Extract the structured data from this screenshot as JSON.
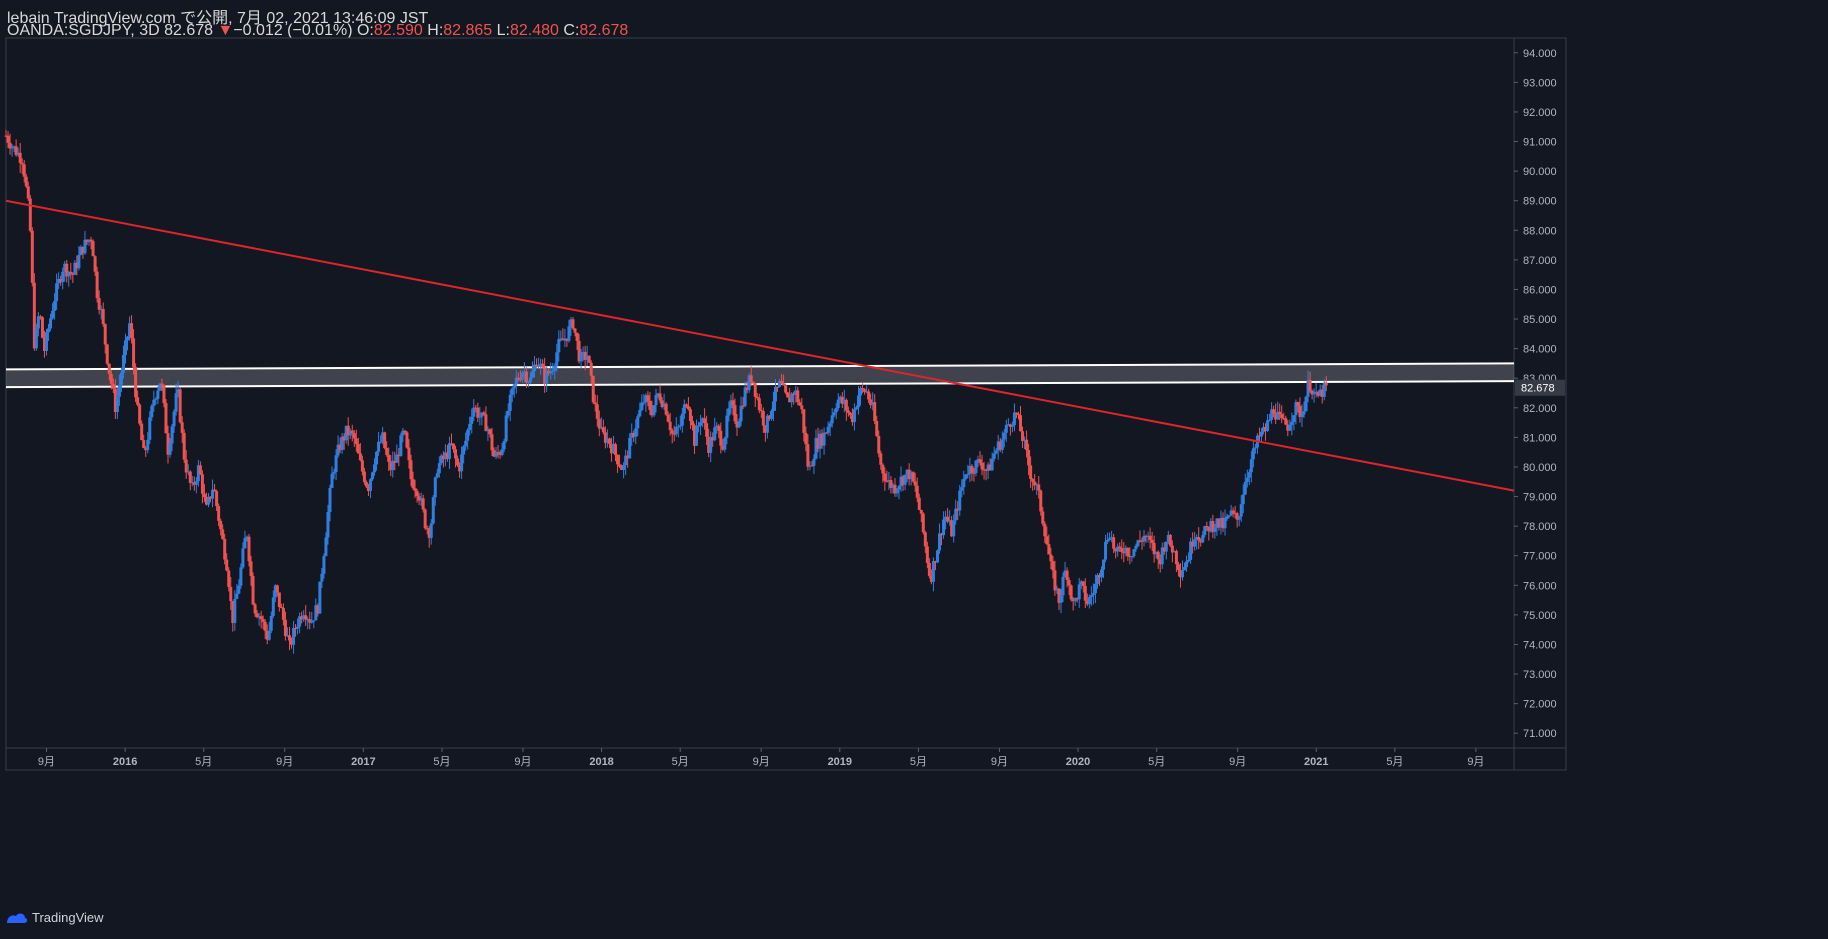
{
  "header": {
    "publisher": "lebain TradingView.com で公開, 7月 02, 2021 13:46:09 JST",
    "symbol": "OANDA:SGDJPY, 3D",
    "last": "82.678",
    "change": "−0.012 (−0.01%)",
    "o_label": "O:",
    "o_val": "82.590",
    "h_label": "H:",
    "h_val": "82.865",
    "l_label": "L:",
    "l_val": "82.480",
    "c_label": "C:",
    "c_val": "82.678"
  },
  "footer": {
    "brand": "TradingView",
    "logo_icon": "tradingview-logo-icon"
  },
  "colors": {
    "bg": "#131722",
    "up": "#2f7fe0",
    "down": "#ef5350",
    "trend": "#e0242b",
    "zone_line": "#ffffff",
    "grid_text": "#b2b5be"
  },
  "chart_data": {
    "type": "candlestick",
    "symbol": "OANDA:SGDJPY",
    "interval": "3D",
    "ylim": [
      70.5,
      94.5
    ],
    "y_ticks": [
      "71.000",
      "72.000",
      "73.000",
      "74.000",
      "75.000",
      "76.000",
      "77.000",
      "78.000",
      "79.000",
      "80.000",
      "81.000",
      "82.000",
      "83.000",
      "84.000",
      "85.000",
      "86.000",
      "87.000",
      "88.000",
      "89.000",
      "90.000",
      "91.000",
      "92.000",
      "93.000",
      "94.000"
    ],
    "last_price_label": "82.678",
    "x_range": [
      2015.5,
      2021.83
    ],
    "x_ticks": [
      {
        "label": "9月",
        "t": 2015.67
      },
      {
        "label": "2016",
        "t": 2016.0
      },
      {
        "label": "5月",
        "t": 2016.33
      },
      {
        "label": "9月",
        "t": 2016.67
      },
      {
        "label": "2017",
        "t": 2017.0
      },
      {
        "label": "5月",
        "t": 2017.33
      },
      {
        "label": "9月",
        "t": 2017.67
      },
      {
        "label": "2018",
        "t": 2018.0
      },
      {
        "label": "5月",
        "t": 2018.33
      },
      {
        "label": "9月",
        "t": 2018.67
      },
      {
        "label": "2019",
        "t": 2019.0
      },
      {
        "label": "5月",
        "t": 2019.33
      },
      {
        "label": "9月",
        "t": 2019.67
      },
      {
        "label": "2020",
        "t": 2020.0
      },
      {
        "label": "5月",
        "t": 2020.33
      },
      {
        "label": "9月",
        "t": 2020.67
      },
      {
        "label": "2021",
        "t": 2021.0
      },
      {
        "label": "5月",
        "t": 2021.33
      },
      {
        "label": "9月",
        "t": 2021.67
      }
    ],
    "price_path": [
      [
        2015.5,
        91.2
      ],
      [
        2015.53,
        90.8
      ],
      [
        2015.57,
        90.4
      ],
      [
        2015.6,
        88.4
      ],
      [
        2015.62,
        84.0
      ],
      [
        2015.64,
        85.3
      ],
      [
        2015.66,
        83.9
      ],
      [
        2015.7,
        85.6
      ],
      [
        2015.74,
        86.8
      ],
      [
        2015.78,
        86.5
      ],
      [
        2015.82,
        87.4
      ],
      [
        2015.86,
        87.8
      ],
      [
        2015.88,
        86.0
      ],
      [
        2015.9,
        85.2
      ],
      [
        2015.93,
        83.4
      ],
      [
        2015.96,
        82.0
      ],
      [
        2015.99,
        83.5
      ],
      [
        2016.02,
        84.9
      ],
      [
        2016.05,
        82.0
      ],
      [
        2016.08,
        80.3
      ],
      [
        2016.12,
        82.3
      ],
      [
        2016.15,
        83.0
      ],
      [
        2016.18,
        80.6
      ],
      [
        2016.22,
        82.6
      ],
      [
        2016.25,
        80.2
      ],
      [
        2016.28,
        79.2
      ],
      [
        2016.31,
        80.0
      ],
      [
        2016.34,
        78.5
      ],
      [
        2016.37,
        79.4
      ],
      [
        2016.4,
        77.9
      ],
      [
        2016.43,
        76.6
      ],
      [
        2016.45,
        74.8
      ],
      [
        2016.48,
        76.2
      ],
      [
        2016.51,
        77.9
      ],
      [
        2016.54,
        75.3
      ],
      [
        2016.57,
        74.9
      ],
      [
        2016.6,
        74.2
      ],
      [
        2016.63,
        75.9
      ],
      [
        2016.66,
        75.0
      ],
      [
        2016.69,
        73.9
      ],
      [
        2016.72,
        74.7
      ],
      [
        2016.75,
        75.2
      ],
      [
        2016.78,
        74.8
      ],
      [
        2016.81,
        75.3
      ],
      [
        2016.84,
        77.6
      ],
      [
        2016.87,
        79.8
      ],
      [
        2016.9,
        80.7
      ],
      [
        2016.93,
        81.2
      ],
      [
        2016.96,
        81.0
      ],
      [
        2016.99,
        80.0
      ],
      [
        2017.02,
        79.3
      ],
      [
        2017.05,
        80.4
      ],
      [
        2017.08,
        81.0
      ],
      [
        2017.11,
        79.9
      ],
      [
        2017.14,
        80.3
      ],
      [
        2017.17,
        81.2
      ],
      [
        2017.2,
        79.6
      ],
      [
        2017.23,
        79.2
      ],
      [
        2017.26,
        78.1
      ],
      [
        2017.28,
        77.8
      ],
      [
        2017.31,
        80.0
      ],
      [
        2017.34,
        80.3
      ],
      [
        2017.37,
        80.7
      ],
      [
        2017.4,
        79.9
      ],
      [
        2017.43,
        80.9
      ],
      [
        2017.46,
        82.1
      ],
      [
        2017.49,
        81.7
      ],
      [
        2017.52,
        81.4
      ],
      [
        2017.55,
        80.3
      ],
      [
        2017.58,
        80.6
      ],
      [
        2017.61,
        82.0
      ],
      [
        2017.64,
        82.9
      ],
      [
        2017.67,
        83.3
      ],
      [
        2017.7,
        82.9
      ],
      [
        2017.73,
        83.7
      ],
      [
        2017.76,
        83.0
      ],
      [
        2017.79,
        83.3
      ],
      [
        2017.82,
        84.1
      ],
      [
        2017.85,
        84.4
      ],
      [
        2017.88,
        84.9
      ],
      [
        2017.91,
        83.6
      ],
      [
        2017.94,
        83.8
      ],
      [
        2017.97,
        82.1
      ],
      [
        2018.0,
        81.1
      ],
      [
        2018.03,
        80.9
      ],
      [
        2018.06,
        80.4
      ],
      [
        2018.09,
        79.9
      ],
      [
        2018.12,
        80.8
      ],
      [
        2018.15,
        81.6
      ],
      [
        2018.18,
        82.3
      ],
      [
        2018.21,
        81.9
      ],
      [
        2018.24,
        82.5
      ],
      [
        2018.27,
        82.0
      ],
      [
        2018.3,
        81.0
      ],
      [
        2018.33,
        81.4
      ],
      [
        2018.36,
        82.4
      ],
      [
        2018.39,
        80.9
      ],
      [
        2018.42,
        81.8
      ],
      [
        2018.45,
        80.7
      ],
      [
        2018.48,
        81.3
      ],
      [
        2018.51,
        80.8
      ],
      [
        2018.54,
        82.1
      ],
      [
        2018.57,
        81.5
      ],
      [
        2018.6,
        82.5
      ],
      [
        2018.63,
        83.1
      ],
      [
        2018.66,
        82.1
      ],
      [
        2018.69,
        81.3
      ],
      [
        2018.72,
        82.3
      ],
      [
        2018.75,
        82.8
      ],
      [
        2018.78,
        82.2
      ],
      [
        2018.81,
        82.6
      ],
      [
        2018.84,
        81.9
      ],
      [
        2018.87,
        79.8
      ],
      [
        2018.9,
        80.8
      ],
      [
        2018.93,
        81.0
      ],
      [
        2018.96,
        81.6
      ],
      [
        2018.99,
        82.3
      ],
      [
        2019.02,
        82.1
      ],
      [
        2019.05,
        81.6
      ],
      [
        2019.08,
        82.5
      ],
      [
        2019.11,
        82.6
      ],
      [
        2019.14,
        81.9
      ],
      [
        2019.17,
        80.1
      ],
      [
        2019.2,
        79.5
      ],
      [
        2019.23,
        79.3
      ],
      [
        2019.26,
        79.6
      ],
      [
        2019.29,
        79.8
      ],
      [
        2019.32,
        79.2
      ],
      [
        2019.35,
        77.8
      ],
      [
        2019.38,
        76.2
      ],
      [
        2019.41,
        77.3
      ],
      [
        2019.44,
        78.4
      ],
      [
        2019.47,
        77.8
      ],
      [
        2019.5,
        78.9
      ],
      [
        2019.53,
        79.9
      ],
      [
        2019.56,
        80.0
      ],
      [
        2019.59,
        80.2
      ],
      [
        2019.62,
        79.8
      ],
      [
        2019.65,
        80.5
      ],
      [
        2019.68,
        80.9
      ],
      [
        2019.71,
        81.5
      ],
      [
        2019.74,
        81.8
      ],
      [
        2019.77,
        80.9
      ],
      [
        2019.8,
        79.8
      ],
      [
        2019.83,
        79.2
      ],
      [
        2019.86,
        77.9
      ],
      [
        2019.89,
        76.4
      ],
      [
        2019.92,
        75.5
      ],
      [
        2019.95,
        76.6
      ],
      [
        2019.98,
        75.3
      ],
      [
        2020.01,
        76.0
      ],
      [
        2020.04,
        75.4
      ],
      [
        2020.07,
        75.9
      ],
      [
        2020.1,
        76.8
      ],
      [
        2020.13,
        77.9
      ],
      [
        2020.16,
        77.0
      ],
      [
        2020.19,
        77.3
      ],
      [
        2020.22,
        77.1
      ],
      [
        2020.25,
        77.4
      ],
      [
        2020.28,
        77.7
      ],
      [
        2020.31,
        77.3
      ],
      [
        2020.34,
        76.8
      ],
      [
        2020.37,
        77.6
      ],
      [
        2020.4,
        77.2
      ],
      [
        2020.43,
        76.5
      ],
      [
        2020.46,
        76.9
      ],
      [
        2020.49,
        77.8
      ],
      [
        2020.52,
        77.6
      ],
      [
        2020.55,
        78.0
      ],
      [
        2020.58,
        78.1
      ],
      [
        2020.61,
        78.0
      ],
      [
        2020.64,
        78.4
      ],
      [
        2020.67,
        78.2
      ],
      [
        2020.7,
        79.5
      ],
      [
        2020.73,
        80.3
      ],
      [
        2020.76,
        81.0
      ],
      [
        2020.79,
        81.3
      ],
      [
        2020.82,
        82.0
      ],
      [
        2020.85,
        81.5
      ],
      [
        2020.88,
        81.4
      ],
      [
        2020.91,
        82.0
      ],
      [
        2020.94,
        81.8
      ],
      [
        2020.97,
        82.9
      ],
      [
        2021.0,
        82.3
      ],
      [
        2021.03,
        82.6
      ],
      [
        2021.05,
        82.68
      ]
    ],
    "trendline": {
      "start": [
        2015.5,
        89.0
      ],
      "end": [
        2021.83,
        79.2
      ],
      "color": "#e0242b"
    },
    "resistance_zone": {
      "upper": [
        2015.5,
        83.3,
        2021.83,
        83.5
      ],
      "lower": [
        2015.5,
        82.7,
        2021.83,
        82.9
      ]
    }
  }
}
